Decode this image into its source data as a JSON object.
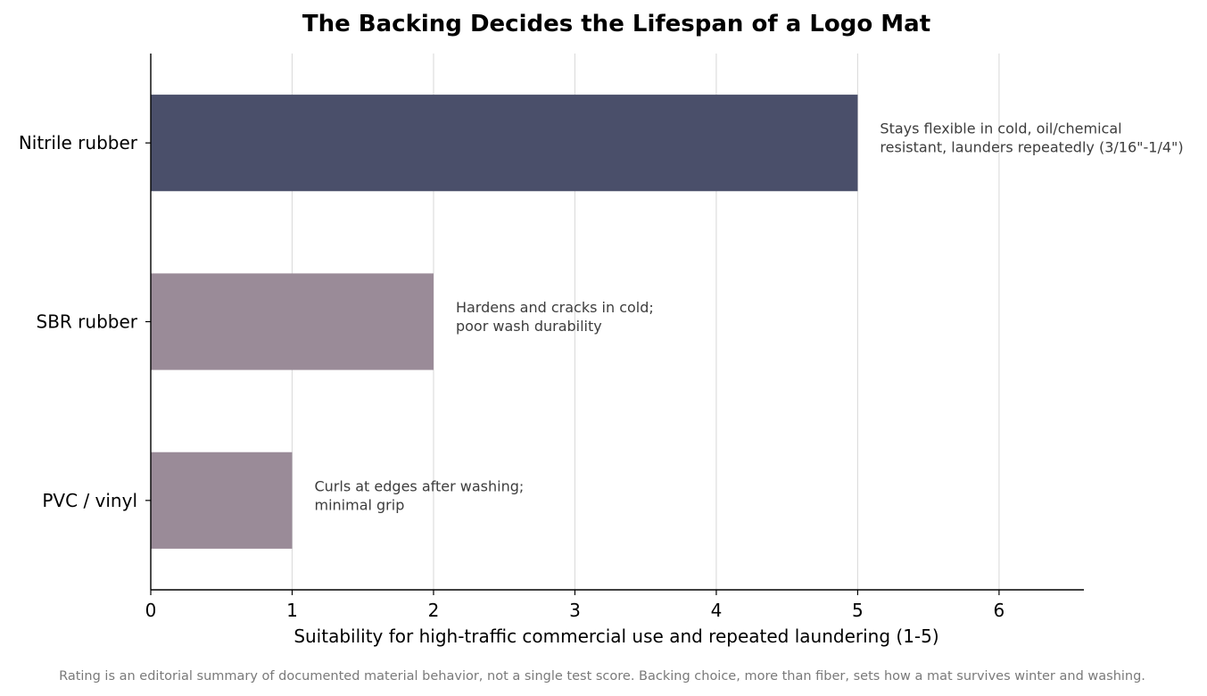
{
  "chart_data": {
    "type": "bar",
    "orientation": "horizontal",
    "title": "The Backing Decides the Lifespan of a Logo Mat",
    "xlabel": "Suitability for high-traffic commercial use and repeated laundering (1-5)",
    "ylabel": "",
    "xlim": [
      0,
      6.6
    ],
    "xticks": [
      "0",
      "1",
      "2",
      "3",
      "4",
      "5",
      "6"
    ],
    "grid": "vertical",
    "categories": [
      "Nitrile rubber",
      "SBR rubber",
      "PVC / vinyl"
    ],
    "values": [
      5,
      2,
      1
    ],
    "bar_colors": [
      "#4a4f6a",
      "#9a8b98",
      "#9a8b98"
    ],
    "annotations": [
      [
        "Stays flexible in cold, oil/chemical",
        "resistant, launders repeatedly (3/16\"-1/4\")"
      ],
      [
        "Hardens and cracks in cold;",
        "poor wash durability"
      ],
      [
        "Curls at edges after washing;",
        "minimal grip"
      ]
    ],
    "footnote": "Rating is an editorial summary of documented material behavior, not a single test score. Backing choice, more than fiber, sets how a mat survives winter and washing."
  }
}
